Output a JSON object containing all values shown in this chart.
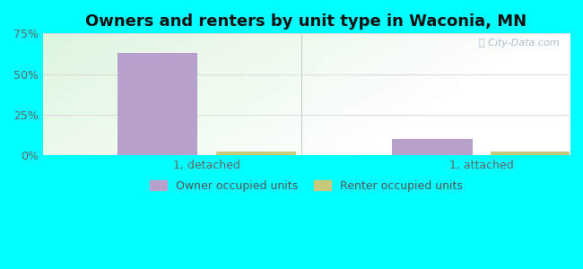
{
  "title": "Owners and renters by unit type in Waconia, MN",
  "categories": [
    "1, detached",
    "1, attached"
  ],
  "owner_values": [
    63,
    10
  ],
  "renter_values": [
    2.5,
    2.5
  ],
  "owner_color": "#b8a0cc",
  "renter_color": "#c8c87a",
  "ylim": [
    0,
    75
  ],
  "yticks": [
    0,
    25,
    50,
    75
  ],
  "yticklabels": [
    "0%",
    "25%",
    "50%",
    "75%"
  ],
  "outer_bg": "#00ffff",
  "title_fontsize": 13,
  "bar_width": 0.35,
  "group_positions": [
    0.3,
    1.5
  ],
  "watermark": "City-Data.com",
  "legend_labels": [
    "Owner occupied units",
    "Renter occupied units"
  ]
}
